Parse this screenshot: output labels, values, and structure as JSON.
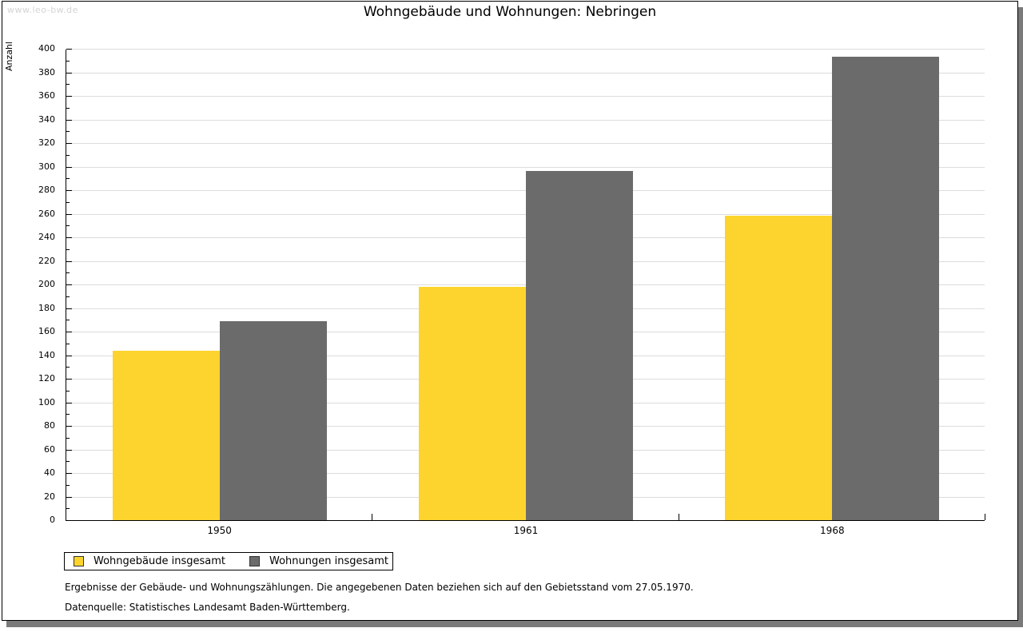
{
  "page": {
    "watermark": "www.leo-bw.de",
    "title": "Wohngebäude und Wohnungen: Nebringen"
  },
  "chart_data": {
    "type": "bar",
    "title": "Wohngebäude und Wohnungen: Nebringen",
    "xlabel": "",
    "ylabel": "Anzahl",
    "categories": [
      "1950",
      "1961",
      "1968"
    ],
    "series": [
      {
        "name": "Wohngebäude insgesamt",
        "color": "#FCD42D",
        "values": [
          144,
          198,
          258
        ]
      },
      {
        "name": "Wohnungen insgesamt",
        "color": "#6B6B6B",
        "values": [
          169,
          296,
          393
        ]
      }
    ],
    "ylim": [
      0,
      400
    ],
    "ytick_step": 20,
    "yminor_step": 10,
    "grid": "horizontal-major",
    "legend_position": "bottom-left"
  },
  "footnotes": {
    "line1": "Ergebnisse der Gebäude- und Wohnungszählungen. Die angegebenen Daten beziehen sich auf den Gebietsstand vom 27.05.1970.",
    "line2": "Datenquelle: Statistisches Landesamt Baden-Württemberg."
  },
  "colors": {
    "grid": "#dcdcdc",
    "axis": "#000000",
    "watermark": "#d4d4d4",
    "shadow": "#7a7a7a"
  }
}
